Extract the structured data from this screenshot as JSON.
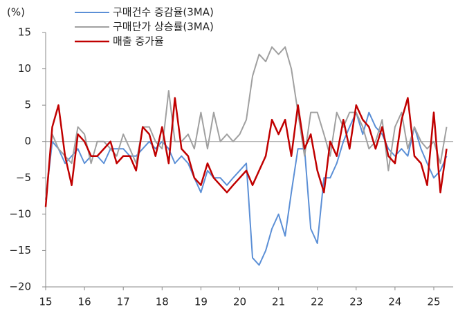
{
  "chart_data": {
    "type": "line",
    "y_label": "(%)",
    "x": [
      15,
      15.17,
      15.33,
      15.5,
      15.67,
      15.83,
      16,
      16.17,
      16.33,
      16.5,
      16.67,
      16.83,
      17,
      17.17,
      17.33,
      17.5,
      17.67,
      17.83,
      18,
      18.17,
      18.33,
      18.5,
      18.67,
      18.83,
      19,
      19.17,
      19.33,
      19.5,
      19.67,
      19.83,
      20,
      20.17,
      20.33,
      20.5,
      20.67,
      20.83,
      21,
      21.17,
      21.33,
      21.5,
      21.67,
      21.83,
      22,
      22.17,
      22.33,
      22.5,
      22.67,
      22.83,
      23,
      23.17,
      23.33,
      23.5,
      23.67,
      23.83,
      24,
      24.17,
      24.33,
      24.5,
      24.67,
      24.83,
      25,
      25.17,
      25.33
    ],
    "series": [
      {
        "name": "구매건수 증감율(3MA)",
        "color": "#5b8fd6",
        "values": [
          -8,
          0,
          -1,
          -3,
          -2,
          -1,
          -3,
          -2,
          -2,
          -3,
          -1,
          -1,
          -1,
          -2,
          -2,
          -1,
          0,
          -1,
          0,
          -1,
          -3,
          -2,
          -3,
          -5,
          -7,
          -4,
          -5,
          -5,
          -6,
          -5,
          -4,
          -3,
          -16,
          -17,
          -15,
          -12,
          -10,
          -13,
          -7,
          -1,
          -1,
          -12,
          -14,
          -5,
          -5,
          -3,
          0,
          2,
          4,
          1,
          4,
          2,
          1,
          -1,
          -2,
          -1,
          -2,
          2,
          -1,
          -3,
          -5,
          -4,
          -2
        ]
      },
      {
        "name": "구매단가 상승률(3MA)",
        "color": "#a0a0a0",
        "values": [
          -8,
          1,
          -1,
          -2,
          -3,
          2,
          1,
          -3,
          0,
          0,
          -1,
          -2,
          1,
          -1,
          -3,
          2,
          2,
          0,
          -1,
          7,
          0,
          0,
          1,
          -1,
          4,
          -1,
          4,
          0,
          1,
          0,
          1,
          3,
          9,
          12,
          11,
          13,
          12,
          13,
          10,
          4,
          -2,
          4,
          4,
          1,
          -2,
          4,
          2,
          4,
          4,
          2,
          -1,
          0,
          3,
          -4,
          2,
          4,
          -1,
          2,
          0,
          -1,
          0,
          -3,
          2
        ]
      },
      {
        "name": "매출 증가율",
        "color": "#c00000",
        "values": [
          -9,
          2,
          5,
          -2,
          -6,
          1,
          0,
          -2,
          -2,
          -1,
          0,
          -3,
          -2,
          -2,
          -4,
          2,
          1,
          -2,
          2,
          -3,
          6,
          -1,
          -2,
          -5,
          -6,
          -3,
          -5,
          -6,
          -7,
          -6,
          -5,
          -4,
          -6,
          -4,
          -2,
          3,
          1,
          3,
          -2,
          5,
          -1,
          1,
          -4,
          -7,
          0,
          -2,
          3,
          -1,
          5,
          3,
          2,
          -1,
          2,
          -2,
          -3,
          3,
          6,
          -2,
          -3,
          -6,
          4,
          -7,
          -1
        ]
      }
    ],
    "xlim": [
      15,
      25.5
    ],
    "xticks": [
      15,
      16,
      17,
      18,
      19,
      20,
      21,
      22,
      23,
      24,
      25
    ],
    "ylim": [
      -20,
      15
    ],
    "yticks": [
      {
        "value": -20,
        "label": "−20"
      },
      {
        "value": -15,
        "label": "−15"
      },
      {
        "value": -10,
        "label": "−10"
      },
      {
        "value": -5,
        "label": "−5"
      },
      0,
      5,
      10,
      15
    ]
  }
}
